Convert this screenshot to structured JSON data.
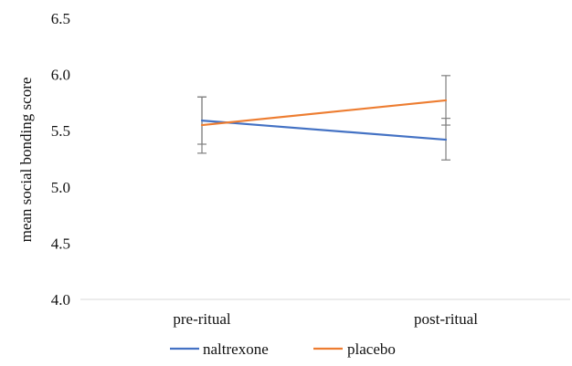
{
  "chart_data": {
    "type": "line",
    "categories": [
      "pre-ritual",
      "post-ritual"
    ],
    "ylabel": "mean social bonding score",
    "ylim": [
      4.0,
      6.5
    ],
    "yticks": [
      "4.0",
      "4.5",
      "5.0",
      "5.5",
      "6.0",
      "6.5"
    ],
    "grid": false,
    "legend_position": "bottom",
    "error_bars": true,
    "series": [
      {
        "name": "naltrexone",
        "color": "#4472C4",
        "values": [
          5.59,
          5.42
        ],
        "error_low": [
          5.3,
          5.24
        ],
        "error_high": [
          5.8,
          5.61
        ]
      },
      {
        "name": "placebo",
        "color": "#ED7D31",
        "values": [
          5.55,
          5.77
        ],
        "error_low": [
          5.38,
          5.55
        ],
        "error_high": [
          5.8,
          5.99
        ]
      }
    ]
  }
}
